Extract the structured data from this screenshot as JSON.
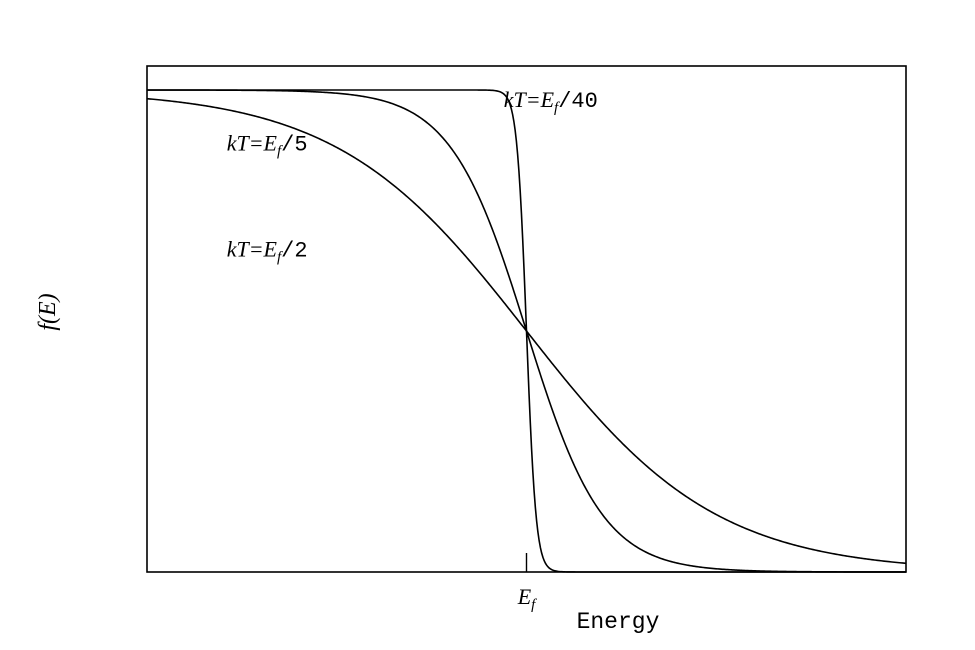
{
  "chart_data": {
    "type": "line",
    "title": "",
    "xlabel": "Energy",
    "ylabel": "f(E)",
    "xlim": [
      -2.0,
      2.0
    ],
    "ylim": [
      0.0,
      1.0
    ],
    "grid": false,
    "legend": "none",
    "x_tick_labels": [
      "E_f"
    ],
    "x_tick_values": [
      0.0
    ],
    "curve_color": "#000000",
    "series": [
      {
        "name": "kT=E_f/40",
        "kT": 0.025,
        "label": {
          "prefix": "kT=E",
          "sub": "f",
          "suffix": "/40",
          "x": -0.12,
          "y": 0.965
        }
      },
      {
        "name": "kT=E_f/5",
        "kT": 0.2,
        "label": {
          "prefix": "kT=E",
          "sub": "f",
          "suffix": "/5",
          "x": -1.58,
          "y": 0.875
        }
      },
      {
        "name": "kT=E_f/2",
        "kT": 0.5,
        "label": {
          "prefix": "kT=E",
          "sub": "f",
          "suffix": "/2",
          "x": -1.58,
          "y": 0.655
        }
      }
    ]
  }
}
